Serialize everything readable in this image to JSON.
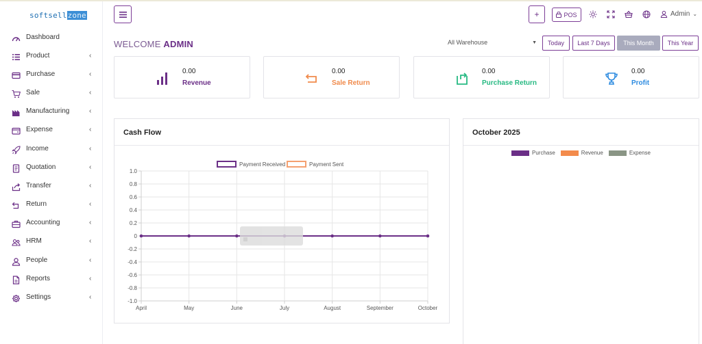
{
  "app": {
    "logo_text": "softsell",
    "logo_highlight": "zone"
  },
  "sidebar": {
    "items": [
      {
        "label": "Dashboard",
        "icon": "dashboard-icon",
        "has_submenu": false
      },
      {
        "label": "Product",
        "icon": "list-icon",
        "has_submenu": true
      },
      {
        "label": "Purchase",
        "icon": "card-icon",
        "has_submenu": true
      },
      {
        "label": "Sale",
        "icon": "cart-icon",
        "has_submenu": true
      },
      {
        "label": "Manufacturing",
        "icon": "factory-icon",
        "has_submenu": true
      },
      {
        "label": "Expense",
        "icon": "wallet-icon",
        "has_submenu": true
      },
      {
        "label": "Income",
        "icon": "rocket-icon",
        "has_submenu": true
      },
      {
        "label": "Quotation",
        "icon": "document-icon",
        "has_submenu": true
      },
      {
        "label": "Transfer",
        "icon": "share-icon",
        "has_submenu": true
      },
      {
        "label": "Return",
        "icon": "return-icon",
        "has_submenu": true
      },
      {
        "label": "Accounting",
        "icon": "briefcase-icon",
        "has_submenu": true
      },
      {
        "label": "HRM",
        "icon": "users-icon",
        "has_submenu": true
      },
      {
        "label": "People",
        "icon": "user-icon",
        "has_submenu": true
      },
      {
        "label": "Reports",
        "icon": "report-icon",
        "has_submenu": true
      },
      {
        "label": "Settings",
        "icon": "gear-icon",
        "has_submenu": true
      }
    ],
    "chevron": "‹"
  },
  "header": {
    "menu_icon": "hamburger-icon",
    "plus_label": "+",
    "pos_label": "POS",
    "icons": [
      "brightness-icon",
      "fullscreen-icon",
      "basket-icon",
      "globe-icon"
    ],
    "user_label": "Admin"
  },
  "welcome": {
    "prefix": "WELCOME",
    "name": "ADMIN"
  },
  "filters": {
    "warehouse": "All Warehouse",
    "ranges": [
      {
        "label": "Today",
        "active": false
      },
      {
        "label": "Last 7 Days",
        "active": false
      },
      {
        "label": "This Month",
        "active": true
      },
      {
        "label": "This Year",
        "active": false
      }
    ]
  },
  "stats": [
    {
      "value": "0.00",
      "label": "Revenue",
      "color": "#6b2f87",
      "icon": "bar-chart-icon"
    },
    {
      "value": "0.00",
      "label": "Sale Return",
      "color": "#f08a4b",
      "icon": "return-arrow-icon"
    },
    {
      "value": "0.00",
      "label": "Purchase Return",
      "color": "#26b982",
      "icon": "box-arrow-icon"
    },
    {
      "value": "0.00",
      "label": "Profit",
      "color": "#2d8be0",
      "icon": "trophy-icon"
    }
  ],
  "cashflow": {
    "title": "Cash Flow",
    "chart_data": {
      "type": "line",
      "x": [
        "April",
        "May",
        "June",
        "July",
        "August",
        "September",
        "October"
      ],
      "series": [
        {
          "name": "Payment Received",
          "color": "#6b2f87",
          "values": [
            0,
            0,
            0,
            0,
            0,
            0,
            0
          ]
        },
        {
          "name": "Payment Sent",
          "color": "#f4a070",
          "values": [
            0,
            0,
            0,
            0,
            0,
            0,
            0
          ]
        }
      ],
      "yticks": [
        "1.0",
        "0.8",
        "0.6",
        "0.4",
        "0.2",
        "0",
        "-0.2",
        "-0.4",
        "-0.6",
        "-0.8",
        "-1.0"
      ],
      "ylim": [
        -1.0,
        1.0
      ],
      "grid": true,
      "legend": "top"
    }
  },
  "monthly": {
    "title": "October 2025",
    "legend": [
      {
        "name": "Purchase",
        "color": "#6b2f87"
      },
      {
        "name": "Revenue",
        "color": "#f38b4c"
      },
      {
        "name": "Expense",
        "color": "#8a9585"
      }
    ]
  },
  "colors": {
    "accent": "#6b2f87",
    "active_range": "#a9abbd"
  }
}
